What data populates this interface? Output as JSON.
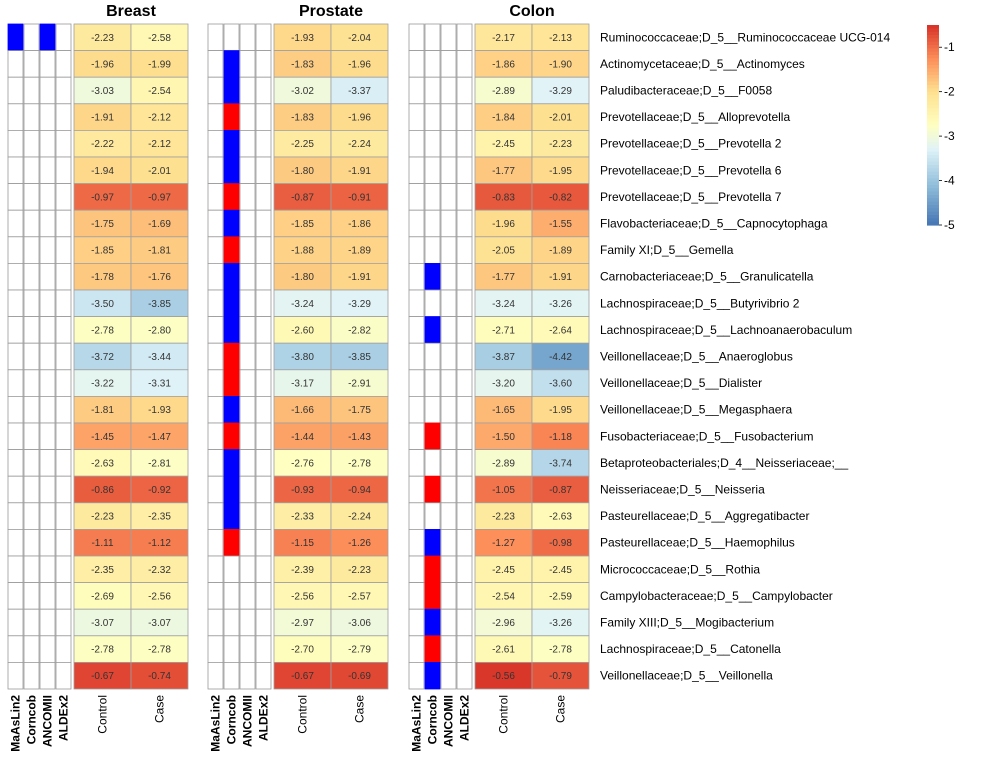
{
  "chart_data": {
    "type": "heatmap",
    "panels": [
      {
        "title": "Breast",
        "methods": [
          "MaAsLin2",
          "Corncob",
          "ANCOMII",
          "ALDEx2"
        ],
        "groups": [
          "Control",
          "Case"
        ],
        "method_flags": [
          [
            "blue",
            "",
            "blue",
            ""
          ],
          [
            "",
            "",
            "",
            ""
          ],
          [
            "",
            "",
            "",
            ""
          ],
          [
            "",
            "",
            "",
            ""
          ],
          [
            "",
            "",
            "",
            ""
          ],
          [
            "",
            "",
            "",
            ""
          ],
          [
            "",
            "",
            "",
            ""
          ],
          [
            "",
            "",
            "",
            ""
          ],
          [
            "",
            "",
            "",
            ""
          ],
          [
            "",
            "",
            "",
            ""
          ],
          [
            "",
            "",
            "",
            ""
          ],
          [
            "",
            "",
            "",
            ""
          ],
          [
            "",
            "",
            "",
            ""
          ],
          [
            "",
            "",
            "",
            ""
          ],
          [
            "",
            "",
            "",
            ""
          ],
          [
            "",
            "",
            "",
            ""
          ],
          [
            "",
            "",
            "",
            ""
          ],
          [
            "",
            "",
            "",
            ""
          ],
          [
            "",
            "",
            "",
            ""
          ],
          [
            "",
            "",
            "",
            ""
          ],
          [
            "",
            "",
            "",
            ""
          ],
          [
            "",
            "",
            "",
            ""
          ],
          [
            "",
            "",
            "",
            ""
          ],
          [
            "",
            "",
            "",
            ""
          ],
          [
            "",
            "",
            "",
            ""
          ]
        ],
        "values": [
          [
            -2.23,
            -2.58
          ],
          [
            -1.96,
            -1.99
          ],
          [
            -3.03,
            -2.54
          ],
          [
            -1.91,
            -2.12
          ],
          [
            -2.22,
            -2.12
          ],
          [
            -1.94,
            -2.01
          ],
          [
            -0.97,
            -0.97
          ],
          [
            -1.75,
            -1.69
          ],
          [
            -1.85,
            -1.81
          ],
          [
            -1.78,
            -1.76
          ],
          [
            -3.5,
            -3.85
          ],
          [
            -2.78,
            -2.8
          ],
          [
            -3.72,
            -3.44
          ],
          [
            -3.22,
            -3.31
          ],
          [
            -1.81,
            -1.93
          ],
          [
            -1.45,
            -1.47
          ],
          [
            -2.63,
            -2.81
          ],
          [
            -0.86,
            -0.92
          ],
          [
            -2.23,
            -2.35
          ],
          [
            -1.11,
            -1.12
          ],
          [
            -2.35,
            -2.32
          ],
          [
            -2.69,
            -2.56
          ],
          [
            -3.07,
            -3.07
          ],
          [
            -2.78,
            -2.78
          ],
          [
            -0.67,
            -0.74
          ]
        ]
      },
      {
        "title": "Prostate",
        "methods": [
          "MaAsLin2",
          "Corncob",
          "ANCOMII",
          "ALDEx2"
        ],
        "groups": [
          "Control",
          "Case"
        ],
        "method_flags": [
          [
            "",
            "",
            "",
            ""
          ],
          [
            "",
            "blue",
            "",
            ""
          ],
          [
            "",
            "blue",
            "",
            ""
          ],
          [
            "",
            "red",
            "",
            ""
          ],
          [
            "",
            "blue",
            "",
            ""
          ],
          [
            "",
            "blue",
            "",
            ""
          ],
          [
            "",
            "red",
            "",
            ""
          ],
          [
            "",
            "blue",
            "",
            ""
          ],
          [
            "",
            "red",
            "",
            ""
          ],
          [
            "",
            "blue",
            "",
            ""
          ],
          [
            "",
            "blue",
            "",
            ""
          ],
          [
            "",
            "blue",
            "",
            ""
          ],
          [
            "",
            "red",
            "",
            ""
          ],
          [
            "",
            "red",
            "",
            ""
          ],
          [
            "",
            "blue",
            "",
            ""
          ],
          [
            "",
            "red",
            "",
            ""
          ],
          [
            "",
            "blue",
            "",
            ""
          ],
          [
            "",
            "blue",
            "",
            ""
          ],
          [
            "",
            "blue",
            "",
            ""
          ],
          [
            "",
            "red",
            "",
            ""
          ],
          [
            "",
            "",
            "",
            ""
          ],
          [
            "",
            "",
            "",
            ""
          ],
          [
            "",
            "",
            "",
            ""
          ],
          [
            "",
            "",
            "",
            ""
          ],
          [
            "",
            "",
            "",
            ""
          ]
        ],
        "values": [
          [
            -1.93,
            -2.04
          ],
          [
            -1.83,
            -1.96
          ],
          [
            -3.02,
            -3.37
          ],
          [
            -1.83,
            -1.96
          ],
          [
            -2.25,
            -2.24
          ],
          [
            -1.8,
            -1.91
          ],
          [
            -0.87,
            -0.91
          ],
          [
            -1.85,
            -1.86
          ],
          [
            -1.88,
            -1.89
          ],
          [
            -1.8,
            -1.91
          ],
          [
            -3.24,
            -3.29
          ],
          [
            -2.6,
            -2.82
          ],
          [
            -3.8,
            -3.85
          ],
          [
            -3.17,
            -2.91
          ],
          [
            -1.66,
            -1.75
          ],
          [
            -1.44,
            -1.43
          ],
          [
            -2.76,
            -2.78
          ],
          [
            -0.93,
            -0.94
          ],
          [
            -2.33,
            -2.24
          ],
          [
            -1.15,
            -1.26
          ],
          [
            -2.39,
            -2.23
          ],
          [
            -2.56,
            -2.57
          ],
          [
            -2.97,
            -3.06
          ],
          [
            -2.7,
            -2.79
          ],
          [
            -0.67,
            -0.69
          ]
        ]
      },
      {
        "title": "Colon",
        "methods": [
          "MaAsLin2",
          "Corncob",
          "ANCOMII",
          "ALDEx2"
        ],
        "groups": [
          "Control",
          "Case"
        ],
        "method_flags": [
          [
            "",
            "",
            "",
            ""
          ],
          [
            "",
            "",
            "",
            ""
          ],
          [
            "",
            "",
            "",
            ""
          ],
          [
            "",
            "",
            "",
            ""
          ],
          [
            "",
            "",
            "",
            ""
          ],
          [
            "",
            "",
            "",
            ""
          ],
          [
            "",
            "",
            "",
            ""
          ],
          [
            "",
            "",
            "",
            ""
          ],
          [
            "",
            "",
            "",
            ""
          ],
          [
            "",
            "blue",
            "",
            ""
          ],
          [
            "",
            "",
            "",
            ""
          ],
          [
            "",
            "blue",
            "",
            ""
          ],
          [
            "",
            "",
            "",
            ""
          ],
          [
            "",
            "",
            "",
            ""
          ],
          [
            "",
            "",
            "",
            ""
          ],
          [
            "",
            "red",
            "",
            ""
          ],
          [
            "",
            "",
            "",
            ""
          ],
          [
            "",
            "red",
            "",
            ""
          ],
          [
            "",
            "",
            "",
            ""
          ],
          [
            "",
            "blue",
            "",
            ""
          ],
          [
            "",
            "red",
            "",
            ""
          ],
          [
            "",
            "red",
            "",
            ""
          ],
          [
            "",
            "blue",
            "",
            ""
          ],
          [
            "",
            "red",
            "",
            ""
          ],
          [
            "",
            "blue",
            "",
            ""
          ]
        ],
        "values": [
          [
            -2.17,
            -2.13
          ],
          [
            -1.86,
            -1.9
          ],
          [
            -2.89,
            -3.29
          ],
          [
            -1.84,
            -2.01
          ],
          [
            -2.45,
            -2.23
          ],
          [
            -1.77,
            -1.95
          ],
          [
            -0.83,
            -0.82
          ],
          [
            -1.96,
            -1.55
          ],
          [
            -2.05,
            -1.89
          ],
          [
            -1.77,
            -1.91
          ],
          [
            -3.24,
            -3.26
          ],
          [
            -2.71,
            -2.64
          ],
          [
            -3.87,
            -4.42
          ],
          [
            -3.2,
            -3.6
          ],
          [
            -1.65,
            -1.95
          ],
          [
            -1.5,
            -1.18
          ],
          [
            -2.89,
            -3.74
          ],
          [
            -1.05,
            -0.87
          ],
          [
            -2.23,
            -2.63
          ],
          [
            -1.27,
            -0.98
          ],
          [
            -2.45,
            -2.45
          ],
          [
            -2.54,
            -2.59
          ],
          [
            -2.96,
            -3.26
          ],
          [
            -2.61,
            -2.78
          ],
          [
            -0.56,
            -0.79
          ]
        ]
      }
    ],
    "row_labels": [
      "Ruminococcaceae;D_5__Ruminococcaceae UCG-014",
      "Actinomycetaceae;D_5__Actinomyces",
      "Paludibacteraceae;D_5__F0058",
      "Prevotellaceae;D_5__Alloprevotella",
      "Prevotellaceae;D_5__Prevotella 2",
      "Prevotellaceae;D_5__Prevotella 6",
      "Prevotellaceae;D_5__Prevotella 7",
      "Flavobacteriaceae;D_5__Capnocytophaga",
      "Family XI;D_5__Gemella",
      "Carnobacteriaceae;D_5__Granulicatella",
      "Lachnospiraceae;D_5__Butyrivibrio 2",
      "Lachnospiraceae;D_5__Lachnoanaerobaculum",
      "Veillonellaceae;D_5__Anaeroglobus",
      "Veillonellaceae;D_5__Dialister",
      "Veillonellaceae;D_5__Megasphaera",
      "Fusobacteriaceae;D_5__Fusobacterium",
      "Betaproteobacteriales;D_4__Neisseriaceae;__",
      "Neisseriaceae;D_5__Neisseria",
      "Pasteurellaceae;D_5__Aggregatibacter",
      "Pasteurellaceae;D_5__Haemophilus",
      "Micrococcaceae;D_5__Rothia",
      "Campylobacteraceae;D_5__Campylobacter",
      "Family XIII;D_5__Mogibacterium",
      "Lachnospiraceae;D_5__Catonella",
      "Veillonellaceae;D_5__Veillonella"
    ],
    "color_scale": {
      "range": [
        -5,
        -0.5
      ],
      "ticks": [
        -1,
        -2,
        -3,
        -4,
        -5
      ],
      "tick_labels": [
        "-1",
        "-2",
        "-3",
        "-4",
        "-5"
      ],
      "stops": [
        {
          "value": -5.0,
          "color": "#4575b4"
        },
        {
          "value": -4.1,
          "color": "#91bfdb"
        },
        {
          "value": -3.3,
          "color": "#e0f3f8"
        },
        {
          "value": -2.75,
          "color": "#ffffbf"
        },
        {
          "value": -2.0,
          "color": "#fee090"
        },
        {
          "value": -1.25,
          "color": "#fc8d59"
        },
        {
          "value": -0.5,
          "color": "#d73027"
        }
      ]
    },
    "flag_colors": {
      "blue": "#0000ff",
      "red": "#ff0000"
    },
    "legend_placement": "top-right"
  }
}
